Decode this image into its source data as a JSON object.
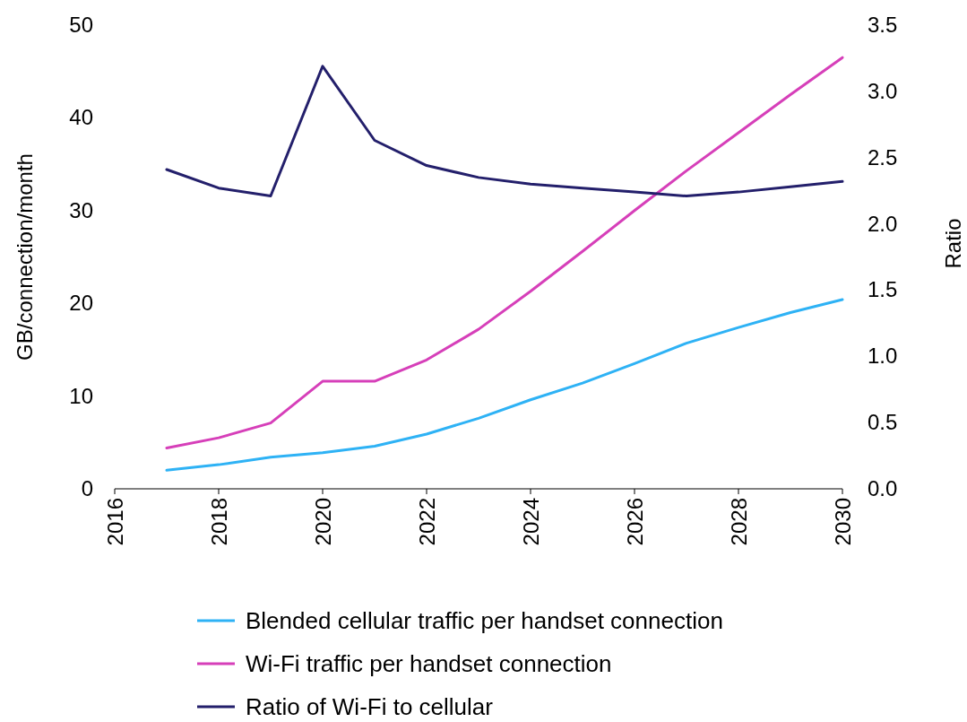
{
  "chart_data": {
    "type": "line",
    "ylabel": "GB/connection/month",
    "y2label": "Ratio",
    "x": [
      2017,
      2018,
      2019,
      2020,
      2021,
      2022,
      2023,
      2024,
      2025,
      2026,
      2027,
      2028,
      2029,
      2030
    ],
    "xlim": [
      2016,
      2030
    ],
    "xticks": [
      2016,
      2018,
      2020,
      2022,
      2024,
      2026,
      2028,
      2030
    ],
    "ylim": [
      0,
      50
    ],
    "yticks": [
      0,
      10,
      20,
      30,
      40,
      50
    ],
    "y2lim": [
      0,
      3.5
    ],
    "y2ticks": [
      {
        "value": 0,
        "label": "0.0"
      },
      {
        "value": 0.5,
        "label": "0.5"
      },
      {
        "value": 1,
        "label": "1.0"
      },
      {
        "value": 1.5,
        "label": "1.5"
      },
      {
        "value": 2,
        "label": "2.0"
      },
      {
        "value": 2.5,
        "label": "2.5"
      },
      {
        "value": 3,
        "label": "3.0"
      },
      {
        "value": 3.5,
        "label": "3.5"
      }
    ],
    "legend": "bottom",
    "grid": false,
    "marker": "none",
    "line_style": "solid",
    "series": [
      {
        "name": "Blended cellular traffic per handset connection",
        "color": "#2eb2f5",
        "values": [
          2.0,
          2.6,
          3.4,
          3.9,
          4.6,
          5.9,
          7.6,
          9.6,
          11.4,
          13.5,
          15.7,
          17.4,
          19.0,
          20.4
        ]
      },
      {
        "name": "Wi-Fi traffic per handset connection",
        "color": "#d63fb9",
        "values": [
          4.4,
          5.5,
          7.1,
          11.6,
          11.6,
          13.9,
          17.2,
          21.3,
          25.6,
          30.0,
          34.3,
          38.4,
          42.5,
          46.5
        ]
      },
      {
        "name": "Ratio of Wi-Fi to cellular",
        "color": "#231f6b",
        "axis": "y2",
        "values": [
          2.41,
          2.27,
          2.21,
          3.19,
          2.63,
          2.44,
          2.35,
          2.3,
          2.27,
          2.24,
          2.21,
          2.24,
          2.28,
          2.32
        ]
      }
    ]
  }
}
